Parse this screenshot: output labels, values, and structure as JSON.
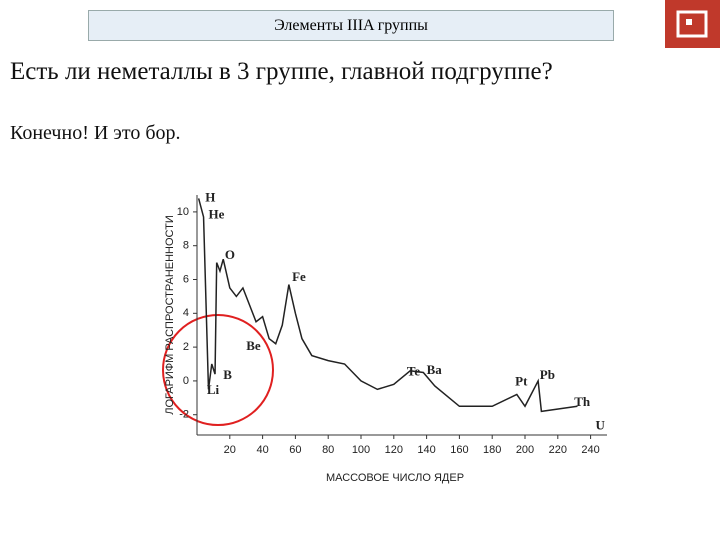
{
  "header": {
    "title": "Элементы IIIA группы"
  },
  "slide": {
    "heading": "Есть ли неметаллы в 3 группе, главной подгруппе?",
    "text": "Конечно! И это бор."
  },
  "chart_data": {
    "type": "line",
    "x_label": "МАССОВОЕ ЧИСЛО ЯДЕР",
    "y_label": "ЛОГАРИФМ РАСПРОСТРАНЕННОСТИ",
    "x": [
      1,
      4,
      7,
      9,
      11,
      12,
      14,
      16,
      20,
      24,
      28,
      32,
      36,
      40,
      44,
      48,
      52,
      56,
      60,
      64,
      70,
      80,
      90,
      100,
      110,
      120,
      130,
      138,
      145,
      160,
      180,
      195,
      200,
      208,
      210,
      232
    ],
    "series": [
      {
        "color": "#222222",
        "values": [
          10.8,
          9.7,
          -0.5,
          1.0,
          0.4,
          7.0,
          6.5,
          7.2,
          5.5,
          5.0,
          5.5,
          4.5,
          3.5,
          3.8,
          2.5,
          2.2,
          3.3,
          5.7,
          4.0,
          2.5,
          1.5,
          1.2,
          1.0,
          0.0,
          -0.5,
          -0.2,
          0.6,
          0.5,
          -0.3,
          -1.5,
          -1.5,
          -0.8,
          -1.5,
          0.0,
          -1.8,
          -1.5
        ]
      }
    ],
    "annotations": [
      {
        "text": "H",
        "x": 5,
        "y": 10.8
      },
      {
        "text": "He",
        "x": 7,
        "y": 9.8
      },
      {
        "text": "O",
        "x": 17,
        "y": 7.4
      },
      {
        "text": "Be",
        "x": 30,
        "y": 2.0
      },
      {
        "text": "B",
        "x": 16,
        "y": 0.3
      },
      {
        "text": "Li",
        "x": 6,
        "y": -0.6
      },
      {
        "text": "Fe",
        "x": 58,
        "y": 6.1
      },
      {
        "text": "Te",
        "x": 128,
        "y": 0.5
      },
      {
        "text": "Ba",
        "x": 140,
        "y": 0.6
      },
      {
        "text": "Pt",
        "x": 194,
        "y": -0.1
      },
      {
        "text": "Pb",
        "x": 209,
        "y": 0.3
      },
      {
        "text": "Th",
        "x": 230,
        "y": -1.3
      },
      {
        "text": "U",
        "x": 243,
        "y": -2.7
      }
    ],
    "xlim": [
      0,
      250
    ],
    "ylim": [
      -3.2,
      11
    ],
    "xticks": [
      20,
      40,
      60,
      80,
      100,
      120,
      140,
      160,
      180,
      200,
      220,
      240
    ],
    "yticks": [
      -2,
      0,
      2,
      4,
      6,
      8,
      10
    ]
  }
}
